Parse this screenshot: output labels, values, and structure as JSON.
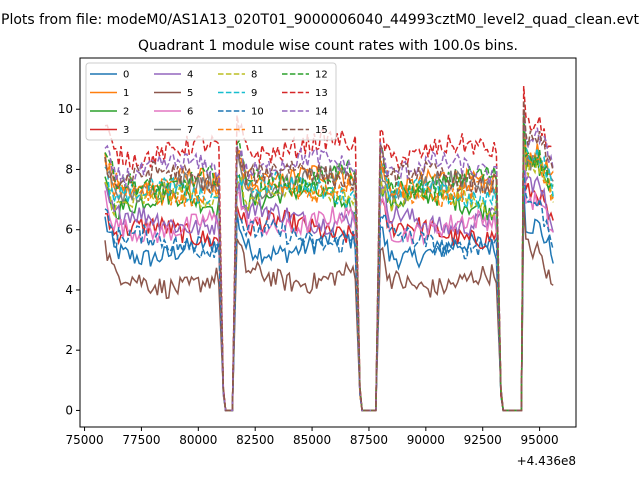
{
  "suptitle": "Plots from file: modeM0/AS1A13_020T01_9000006040_44993cztM0_level2_quad_clean.evt",
  "chart_data": {
    "type": "line",
    "title": "Quadrant 1 module wise count rates with 100.0s bins.",
    "xlabel": "",
    "ylabel": "",
    "x_offset_label": "+4.436e8",
    "xlim": [
      74800,
      96600
    ],
    "ylim": [
      -0.55,
      11.7
    ],
    "x_ticks": [
      75000,
      77500,
      80000,
      82500,
      85000,
      87500,
      90000,
      92500,
      95000
    ],
    "x_tick_labels": [
      "75000",
      "77500",
      "80000",
      "82500",
      "85000",
      "87500",
      "90000",
      "92500",
      "95000"
    ],
    "y_ticks": [
      0,
      2,
      4,
      6,
      8,
      10
    ],
    "y_tick_labels": [
      "0",
      "2",
      "4",
      "6",
      "8",
      "10"
    ],
    "grid": false,
    "legend_position": "top-left",
    "legend_columns": 4,
    "x_segments": [
      {
        "start": 75900,
        "end": 80900,
        "after_drop": 81100,
        "zero_until": 81500
      },
      {
        "start": 81700,
        "end": 86900,
        "after_drop": 87100,
        "zero_until": 87800
      },
      {
        "start": 88000,
        "end": 93100,
        "after_drop": 93300,
        "zero_until": 94200
      },
      {
        "start": 94300,
        "end": 95600
      }
    ],
    "series": [
      {
        "name": "0",
        "color": "#1f77b4",
        "dash": "solid",
        "level": 5.3
      },
      {
        "name": "1",
        "color": "#ff7f0e",
        "dash": "solid",
        "level": 7.5
      },
      {
        "name": "2",
        "color": "#2ca02c",
        "dash": "solid",
        "level": 6.9
      },
      {
        "name": "3",
        "color": "#d62728",
        "dash": "solid",
        "level": 5.9
      },
      {
        "name": "4",
        "color": "#9467bd",
        "dash": "solid",
        "level": 6.3
      },
      {
        "name": "5",
        "color": "#8c564b",
        "dash": "solid",
        "level": 4.3
      },
      {
        "name": "6",
        "color": "#e377c2",
        "dash": "solid",
        "level": 6.1
      },
      {
        "name": "7",
        "color": "#7f7f7f",
        "dash": "solid",
        "level": 7.4
      },
      {
        "name": "8",
        "color": "#bcbd22",
        "dash": "dashed",
        "level": 7.0
      },
      {
        "name": "9",
        "color": "#17becf",
        "dash": "dashed",
        "level": 7.2
      },
      {
        "name": "10",
        "color": "#1f77b4",
        "dash": "dashed",
        "level": 5.6
      },
      {
        "name": "11",
        "color": "#ff7f0e",
        "dash": "dashed",
        "level": 7.3
      },
      {
        "name": "12",
        "color": "#2ca02c",
        "dash": "dashed",
        "level": 7.6
      },
      {
        "name": "13",
        "color": "#d62728",
        "dash": "dashed",
        "level": 8.6
      },
      {
        "name": "14",
        "color": "#9467bd",
        "dash": "dashed",
        "level": 8.0
      },
      {
        "name": "15",
        "color": "#8c564b",
        "dash": "dashed",
        "level": 7.7
      }
    ]
  }
}
